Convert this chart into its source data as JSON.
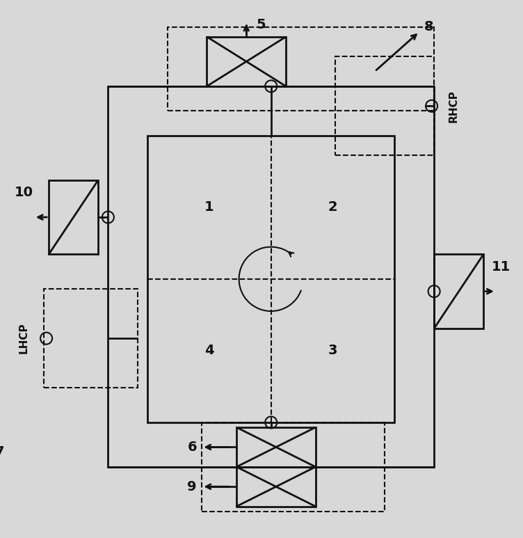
{
  "bg_color": "#d8d8d8",
  "lc": "#111111",
  "lw": 2.0,
  "lw_thin": 1.5,
  "label_fontsize": 14,
  "label_fontsize_sm": 11,
  "fw": "bold",
  "outer": {
    "l": 0.16,
    "r": 0.82,
    "b": 0.1,
    "t": 0.87
  },
  "inner": {
    "l": 0.24,
    "r": 0.74,
    "b": 0.19,
    "t": 0.77
  },
  "top_coup": {
    "l": 0.36,
    "r": 0.52,
    "b": 0.87,
    "t": 0.97
  },
  "bot_coup1": {
    "l": 0.42,
    "r": 0.58,
    "b": 0.02,
    "t": 0.1
  },
  "bot_coup2": {
    "l": 0.42,
    "r": 0.58,
    "b": 0.1,
    "t": 0.18
  },
  "ps_left": {
    "l": 0.04,
    "r": 0.14,
    "b": 0.53,
    "t": 0.68
  },
  "ps_right": {
    "l": 0.82,
    "r": 0.92,
    "b": 0.38,
    "t": 0.53
  },
  "rhcp_dash": {
    "l": 0.62,
    "r": 0.82,
    "b": 0.73,
    "t": 0.93
  },
  "lhcp_dash": {
    "l": 0.03,
    "r": 0.22,
    "b": 0.26,
    "t": 0.46
  },
  "top_dash": {
    "l": 0.28,
    "r": 0.82,
    "b": 0.82,
    "t": 0.99
  },
  "bot_dash": {
    "l": 0.35,
    "r": 0.72,
    "b": 0.01,
    "t": 0.19
  },
  "circ_r": 0.065,
  "port_r": 0.012
}
